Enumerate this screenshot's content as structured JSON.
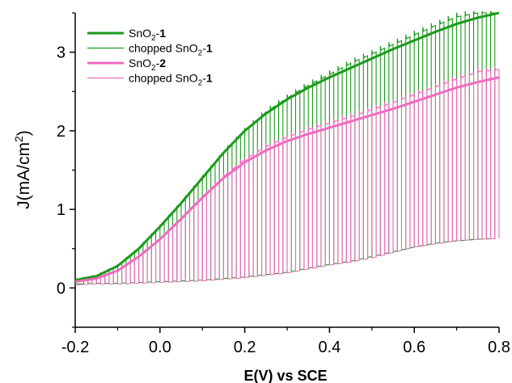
{
  "chart_data": {
    "type": "line",
    "title": "",
    "xlabel": "E(V) vs SCE",
    "ylabel_main": "J(mA/cm",
    "ylabel_sup": "2",
    "ylabel_tail": ")",
    "xlim": [
      -0.2,
      0.8
    ],
    "ylim": [
      -0.5,
      3.5
    ],
    "x_ticks": [
      "-0.2",
      "0.0",
      "0.2",
      "0.4",
      "0.6",
      "0.8"
    ],
    "x_tick_values": [
      -0.2,
      0.0,
      0.2,
      0.4,
      0.6,
      0.8
    ],
    "y_ticks": [
      "0",
      "1",
      "2",
      "3"
    ],
    "y_tick_values": [
      0,
      1,
      2,
      3
    ],
    "grid": false,
    "legend_position": "top-left",
    "colors": {
      "green": "#1a9a1a",
      "pink": "#f06ac0"
    },
    "series": [
      {
        "legend": {
          "prefix": "SnO",
          "sub": "2",
          "suffix": "-",
          "bold": "1"
        },
        "style": "thick",
        "color": "#1a9a1a",
        "x": [
          -0.2,
          -0.15,
          -0.1,
          -0.05,
          0.0,
          0.05,
          0.1,
          0.15,
          0.2,
          0.25,
          0.3,
          0.35,
          0.4,
          0.45,
          0.5,
          0.55,
          0.6,
          0.65,
          0.7,
          0.75,
          0.8
        ],
        "y": [
          0.1,
          0.15,
          0.28,
          0.5,
          0.78,
          1.08,
          1.4,
          1.72,
          2.0,
          2.22,
          2.4,
          2.55,
          2.68,
          2.8,
          2.92,
          3.04,
          3.15,
          3.26,
          3.36,
          3.44,
          3.5
        ]
      },
      {
        "legend": {
          "prefix": "chopped SnO",
          "sub": "2",
          "suffix": "-",
          "bold": "1"
        },
        "style": "thin-chopped",
        "color": "#1a9a1a",
        "chop_start": -0.18,
        "chop_period": 0.02,
        "on_top": [
          0.1,
          0.15,
          0.28,
          0.5,
          0.78,
          1.08,
          1.4,
          1.72,
          2.0,
          2.24,
          2.42,
          2.58,
          2.72,
          2.86,
          2.98,
          3.1,
          3.22,
          3.34,
          3.45,
          3.5,
          3.5
        ],
        "dark": [
          0.05,
          0.06,
          0.06,
          0.07,
          0.08,
          0.09,
          0.1,
          0.12,
          0.14,
          0.17,
          0.2,
          0.25,
          0.3,
          0.34,
          0.4,
          0.46,
          0.52,
          0.57,
          0.6,
          0.62,
          0.63
        ],
        "x": [
          -0.2,
          -0.15,
          -0.1,
          -0.05,
          0.0,
          0.05,
          0.1,
          0.15,
          0.2,
          0.25,
          0.3,
          0.35,
          0.4,
          0.45,
          0.5,
          0.55,
          0.6,
          0.65,
          0.7,
          0.75,
          0.8
        ]
      },
      {
        "legend": {
          "prefix": "SnO",
          "sub": "2",
          "suffix": "-",
          "bold": "2"
        },
        "style": "thick",
        "color": "#f06ac0",
        "x": [
          -0.2,
          -0.15,
          -0.1,
          -0.05,
          0.0,
          0.05,
          0.1,
          0.15,
          0.2,
          0.25,
          0.3,
          0.35,
          0.4,
          0.45,
          0.5,
          0.55,
          0.6,
          0.65,
          0.7,
          0.75,
          0.8
        ],
        "y": [
          0.08,
          0.12,
          0.22,
          0.4,
          0.62,
          0.88,
          1.15,
          1.4,
          1.6,
          1.75,
          1.87,
          1.96,
          2.04,
          2.12,
          2.2,
          2.28,
          2.37,
          2.46,
          2.55,
          2.62,
          2.68
        ]
      },
      {
        "legend": {
          "prefix": "chopped SnO",
          "sub": "2",
          "suffix": "-",
          "bold": "1"
        },
        "style": "thin-chopped",
        "color": "#f06ac0",
        "chop_start": -0.17,
        "chop_period": 0.02,
        "on_top": [
          0.08,
          0.12,
          0.22,
          0.4,
          0.62,
          0.88,
          1.15,
          1.42,
          1.64,
          1.8,
          1.92,
          2.02,
          2.1,
          2.18,
          2.27,
          2.36,
          2.46,
          2.56,
          2.66,
          2.75,
          2.78
        ],
        "dark": [
          0.04,
          0.05,
          0.05,
          0.06,
          0.07,
          0.08,
          0.09,
          0.11,
          0.13,
          0.16,
          0.19,
          0.24,
          0.29,
          0.33,
          0.38,
          0.45,
          0.52,
          0.56,
          0.6,
          0.62,
          0.63
        ],
        "x": [
          -0.2,
          -0.15,
          -0.1,
          -0.05,
          0.0,
          0.05,
          0.1,
          0.15,
          0.2,
          0.25,
          0.3,
          0.35,
          0.4,
          0.45,
          0.5,
          0.55,
          0.6,
          0.65,
          0.7,
          0.75,
          0.8
        ]
      }
    ]
  }
}
